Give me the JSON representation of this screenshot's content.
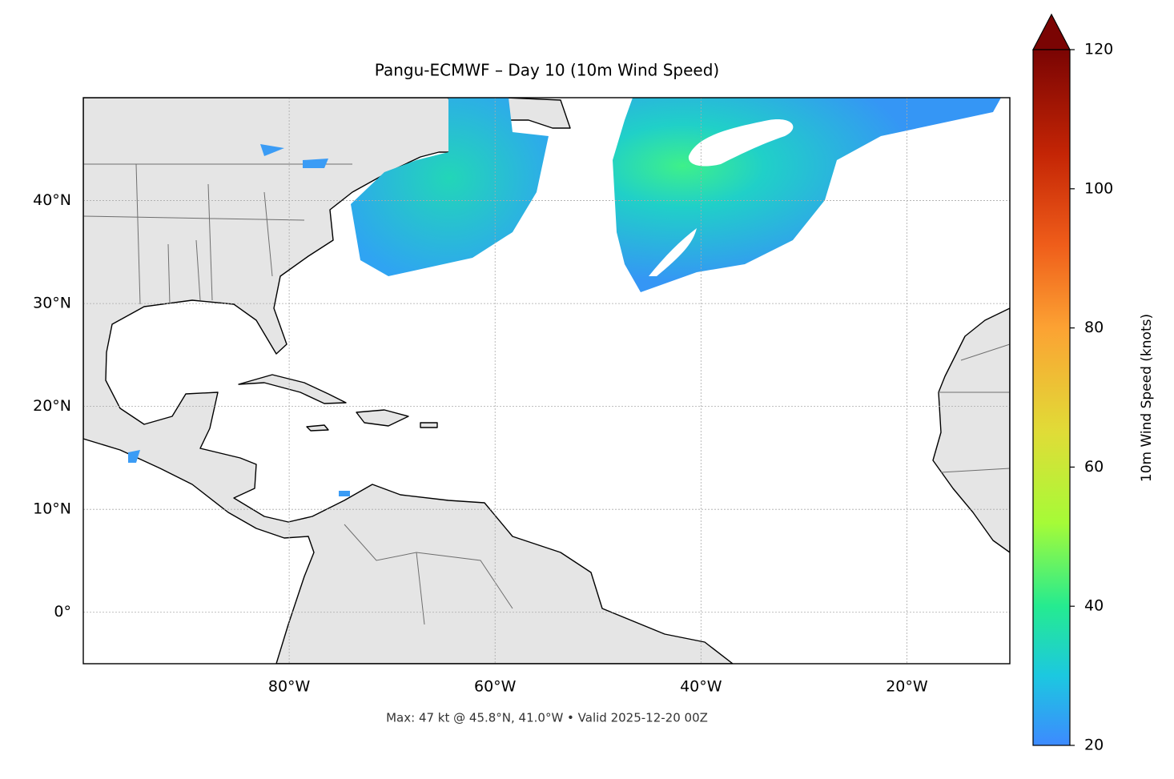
{
  "map": {
    "title": "Pangu-ECMWF – Day 10 (10m Wind Speed)",
    "xlim": [
      -100,
      -10
    ],
    "ylim": [
      -5,
      50
    ],
    "xticks": [
      {
        "value": -80,
        "label": "80°W"
      },
      {
        "value": -60,
        "label": "60°W"
      },
      {
        "value": -40,
        "label": "40°W"
      },
      {
        "value": -20,
        "label": "20°W"
      }
    ],
    "yticks": [
      {
        "value": 0,
        "label": "0°"
      },
      {
        "value": 10,
        "label": "10°N"
      },
      {
        "value": 20,
        "label": "20°N"
      },
      {
        "value": 30,
        "label": "30°N"
      },
      {
        "value": 40,
        "label": "40°N"
      }
    ],
    "grid": true,
    "footer": "Max: 47 kt @ 45.8°N, 41.0°W • Valid 2025-12-20 00Z",
    "colorbar": {
      "label": "10m Wind Speed (knots)",
      "lim": [
        20,
        120
      ],
      "ticks": [
        20,
        40,
        60,
        80,
        100,
        120
      ]
    }
  }
}
